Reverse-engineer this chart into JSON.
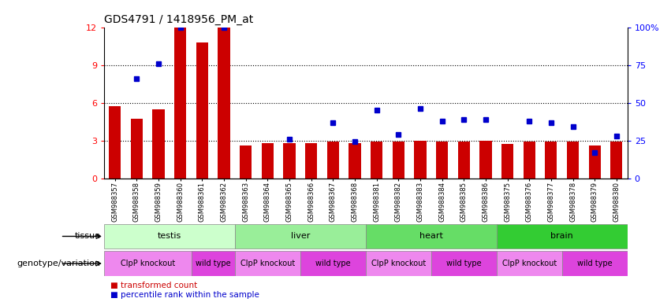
{
  "title": "GDS4791 / 1418956_PM_at",
  "samples": [
    "GSM988357",
    "GSM988358",
    "GSM988359",
    "GSM988360",
    "GSM988361",
    "GSM988362",
    "GSM988363",
    "GSM988364",
    "GSM988365",
    "GSM988366",
    "GSM988367",
    "GSM988368",
    "GSM988381",
    "GSM988382",
    "GSM988383",
    "GSM988384",
    "GSM988385",
    "GSM988386",
    "GSM988375",
    "GSM988376",
    "GSM988377",
    "GSM988378",
    "GSM988379",
    "GSM988380"
  ],
  "bar_values": [
    5.7,
    4.7,
    5.5,
    12.0,
    10.8,
    12.0,
    2.6,
    2.8,
    2.8,
    2.8,
    2.9,
    2.8,
    2.9,
    2.9,
    3.0,
    2.9,
    2.9,
    3.0,
    2.7,
    2.9,
    2.9,
    2.9,
    2.6,
    2.9
  ],
  "dot_values": [
    null,
    66,
    76,
    100,
    null,
    100,
    null,
    null,
    26,
    null,
    37,
    24,
    45,
    29,
    46,
    38,
    39,
    39,
    null,
    38,
    37,
    34,
    17,
    28
  ],
  "bar_color": "#cc0000",
  "dot_color": "#0000cc",
  "ylim_left": [
    0,
    12
  ],
  "ylim_right": [
    0,
    100
  ],
  "yticks_left": [
    0,
    3,
    6,
    9,
    12
  ],
  "yticks_right": [
    0,
    25,
    50,
    75,
    100
  ],
  "ytick_labels_right": [
    "0",
    "25",
    "50",
    "75",
    "100%"
  ],
  "grid_lines": [
    3,
    6,
    9
  ],
  "tissue_groups": [
    {
      "label": "testis",
      "start": 0,
      "end": 6,
      "color": "#ccffcc"
    },
    {
      "label": "liver",
      "start": 6,
      "end": 12,
      "color": "#99ee99"
    },
    {
      "label": "heart",
      "start": 12,
      "end": 18,
      "color": "#66dd66"
    },
    {
      "label": "brain",
      "start": 18,
      "end": 24,
      "color": "#33cc33"
    }
  ],
  "genotype_groups": [
    {
      "label": "ClpP knockout",
      "start": 0,
      "end": 4,
      "color": "#ee88ee"
    },
    {
      "label": "wild type",
      "start": 4,
      "end": 6,
      "color": "#dd44dd"
    },
    {
      "label": "ClpP knockout",
      "start": 6,
      "end": 9,
      "color": "#ee88ee"
    },
    {
      "label": "wild type",
      "start": 9,
      "end": 12,
      "color": "#dd44dd"
    },
    {
      "label": "ClpP knockout",
      "start": 12,
      "end": 15,
      "color": "#ee88ee"
    },
    {
      "label": "wild type",
      "start": 15,
      "end": 18,
      "color": "#dd44dd"
    },
    {
      "label": "ClpP knockout",
      "start": 18,
      "end": 21,
      "color": "#ee88ee"
    },
    {
      "label": "wild type",
      "start": 21,
      "end": 24,
      "color": "#dd44dd"
    }
  ],
  "tissue_row_label": "tissue",
  "genotype_row_label": "genotype/variation",
  "legend_items": [
    {
      "label": "transformed count",
      "color": "#cc0000"
    },
    {
      "label": "percentile rank within the sample",
      "color": "#0000cc"
    }
  ]
}
